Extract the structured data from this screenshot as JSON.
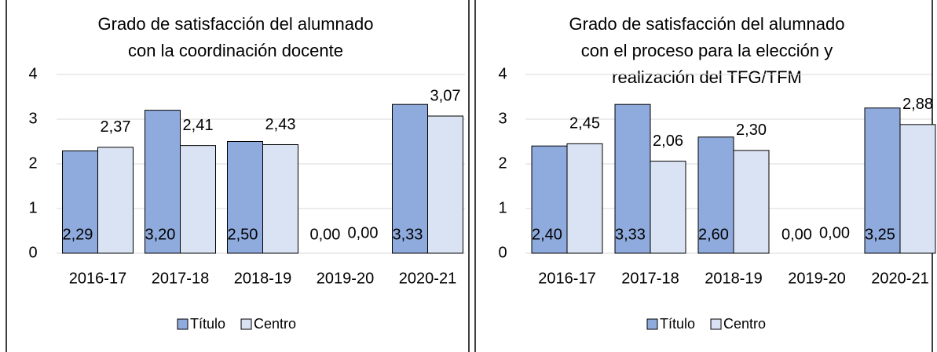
{
  "chart_data": [
    {
      "type": "bar",
      "title": [
        "Grado de satisfacción del alumnado",
        "con la coordinación docente"
      ],
      "categories": [
        "2016-17",
        "2017-18",
        "2018-19",
        "2019-20",
        "2020-21"
      ],
      "series": [
        {
          "name": "Título",
          "color": "#8faadc",
          "values": [
            2.29,
            3.2,
            2.5,
            0,
            3.33
          ],
          "value_labels": [
            "2,29",
            "3,20",
            "2,50",
            "0,00",
            "3,33"
          ]
        },
        {
          "name": "Centro",
          "color": "#dae3f3",
          "values": [
            2.37,
            2.41,
            2.43,
            0,
            3.07
          ],
          "value_labels": [
            "2,37",
            "2,41",
            "2,43",
            "0,00",
            "3,07"
          ]
        }
      ],
      "ylim": [
        0,
        4
      ],
      "yticks": [
        0,
        1,
        2,
        3,
        4
      ],
      "grid": true,
      "legend": "bottom"
    },
    {
      "type": "bar",
      "title": [
        "Grado de satisfacción del alumnado",
        "con el proceso para la elección y",
        "realización del TFG/TFM"
      ],
      "categories": [
        "2016-17",
        "2017-18",
        "2018-19",
        "2019-20",
        "2020-21"
      ],
      "series": [
        {
          "name": "Título",
          "color": "#8faadc",
          "values": [
            2.4,
            3.33,
            2.6,
            0,
            3.25
          ],
          "value_labels": [
            "2,40",
            "3,33",
            "2,60",
            "0,00",
            "3,25"
          ]
        },
        {
          "name": "Centro",
          "color": "#dae3f3",
          "values": [
            2.45,
            2.06,
            2.3,
            0,
            2.88
          ],
          "value_labels": [
            "2,45",
            "2,06",
            "2,30",
            "0,00",
            "2,88"
          ]
        }
      ],
      "ylim": [
        0,
        4
      ],
      "yticks": [
        0,
        1,
        2,
        3,
        4
      ],
      "grid": true,
      "legend": "bottom"
    }
  ]
}
